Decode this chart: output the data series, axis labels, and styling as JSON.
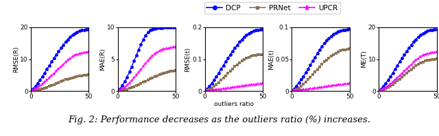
{
  "x": [
    0,
    2,
    4,
    6,
    8,
    10,
    12,
    14,
    16,
    18,
    20,
    22,
    24,
    26,
    28,
    30,
    32,
    34,
    36,
    38,
    40,
    42,
    44,
    46,
    48,
    50
  ],
  "subplots": [
    {
      "ylabel": "RMSE(R)",
      "ylim": [
        0,
        20
      ],
      "yticks": [
        0,
        10,
        20
      ],
      "dcp": [
        0.2,
        0.8,
        1.6,
        2.5,
        3.5,
        4.6,
        5.7,
        6.9,
        8.0,
        9.2,
        10.3,
        11.4,
        12.5,
        13.5,
        14.5,
        15.4,
        16.2,
        17.0,
        17.6,
        18.1,
        18.5,
        18.8,
        19.0,
        19.2,
        19.3,
        19.4
      ],
      "prnet": [
        0.05,
        0.1,
        0.2,
        0.3,
        0.5,
        0.7,
        0.9,
        1.2,
        1.5,
        1.8,
        2.1,
        2.4,
        2.7,
        3.0,
        3.3,
        3.6,
        3.8,
        4.0,
        4.2,
        4.4,
        4.6,
        4.7,
        4.8,
        4.9,
        5.0,
        5.1
      ],
      "upcr": [
        0.1,
        0.3,
        0.7,
        1.1,
        1.6,
        2.2,
        2.8,
        3.4,
        4.1,
        4.8,
        5.5,
        6.2,
        6.9,
        7.6,
        8.3,
        9.0,
        9.6,
        10.2,
        10.7,
        11.1,
        11.4,
        11.6,
        11.8,
        12.0,
        12.1,
        12.2
      ]
    },
    {
      "ylabel": "MAE(R)",
      "ylim": [
        0,
        10
      ],
      "yticks": [
        0,
        5,
        10
      ],
      "dcp": [
        0.1,
        0.4,
        0.9,
        1.5,
        2.2,
        3.0,
        3.8,
        4.7,
        5.6,
        6.5,
        7.3,
        8.1,
        8.7,
        9.2,
        9.5,
        9.7,
        9.8,
        9.85,
        9.9,
        9.92,
        9.94,
        9.95,
        9.96,
        9.97,
        9.98,
        9.99
      ],
      "prnet": [
        0.02,
        0.06,
        0.12,
        0.2,
        0.3,
        0.42,
        0.55,
        0.7,
        0.86,
        1.02,
        1.2,
        1.38,
        1.56,
        1.74,
        1.92,
        2.1,
        2.27,
        2.43,
        2.57,
        2.7,
        2.82,
        2.92,
        3.01,
        3.09,
        3.16,
        3.22
      ],
      "upcr": [
        0.05,
        0.15,
        0.35,
        0.6,
        0.9,
        1.25,
        1.65,
        2.05,
        2.5,
        2.95,
        3.4,
        3.85,
        4.3,
        4.75,
        5.15,
        5.5,
        5.8,
        6.05,
        6.25,
        6.4,
        6.52,
        6.62,
        6.7,
        6.77,
        6.83,
        6.88
      ]
    },
    {
      "ylabel": "RMSE(t)",
      "ylim": [
        0,
        0.2
      ],
      "yticks": [
        0,
        0.1,
        0.2
      ],
      "dcp": [
        0.002,
        0.008,
        0.016,
        0.025,
        0.035,
        0.046,
        0.057,
        0.069,
        0.08,
        0.092,
        0.103,
        0.114,
        0.125,
        0.135,
        0.145,
        0.154,
        0.162,
        0.17,
        0.176,
        0.181,
        0.185,
        0.188,
        0.19,
        0.192,
        0.193,
        0.194
      ],
      "prnet": [
        0.001,
        0.003,
        0.006,
        0.01,
        0.015,
        0.021,
        0.027,
        0.034,
        0.041,
        0.048,
        0.056,
        0.063,
        0.07,
        0.077,
        0.083,
        0.089,
        0.094,
        0.099,
        0.103,
        0.106,
        0.109,
        0.111,
        0.112,
        0.113,
        0.114,
        0.115
      ],
      "upcr": [
        0.0002,
        0.0006,
        0.0012,
        0.002,
        0.003,
        0.004,
        0.005,
        0.006,
        0.007,
        0.008,
        0.009,
        0.01,
        0.011,
        0.012,
        0.013,
        0.014,
        0.015,
        0.016,
        0.017,
        0.018,
        0.019,
        0.02,
        0.021,
        0.022,
        0.023,
        0.024
      ]
    },
    {
      "ylabel": "MAE(t)",
      "ylim": [
        0,
        0.1
      ],
      "yticks": [
        0,
        0.05,
        0.1
      ],
      "dcp": [
        0.001,
        0.004,
        0.008,
        0.013,
        0.018,
        0.023,
        0.029,
        0.035,
        0.041,
        0.047,
        0.053,
        0.059,
        0.065,
        0.07,
        0.075,
        0.079,
        0.083,
        0.086,
        0.089,
        0.091,
        0.093,
        0.094,
        0.095,
        0.096,
        0.097,
        0.098
      ],
      "prnet": [
        0.0005,
        0.0015,
        0.003,
        0.005,
        0.008,
        0.011,
        0.014,
        0.018,
        0.022,
        0.026,
        0.03,
        0.034,
        0.038,
        0.042,
        0.046,
        0.049,
        0.052,
        0.055,
        0.057,
        0.059,
        0.061,
        0.063,
        0.064,
        0.065,
        0.066,
        0.067
      ],
      "upcr": [
        0.0001,
        0.0003,
        0.0006,
        0.001,
        0.0014,
        0.002,
        0.0025,
        0.003,
        0.0035,
        0.004,
        0.0045,
        0.005,
        0.0055,
        0.006,
        0.0065,
        0.007,
        0.0075,
        0.008,
        0.0085,
        0.009,
        0.0095,
        0.01,
        0.0105,
        0.011,
        0.0115,
        0.012
      ]
    },
    {
      "ylabel": "ME(T)",
      "ylim": [
        0,
        20
      ],
      "yticks": [
        0,
        10,
        20
      ],
      "dcp": [
        0.2,
        0.8,
        1.6,
        2.5,
        3.5,
        4.6,
        5.7,
        6.9,
        8.0,
        9.2,
        10.3,
        11.4,
        12.5,
        13.5,
        14.5,
        15.4,
        16.2,
        17.0,
        17.6,
        18.1,
        18.5,
        18.8,
        19.0,
        19.2,
        19.3,
        19.4
      ],
      "prnet": [
        0.05,
        0.2,
        0.4,
        0.7,
        1.1,
        1.5,
        2.0,
        2.6,
        3.2,
        3.8,
        4.4,
        5.0,
        5.6,
        6.2,
        6.8,
        7.4,
        7.9,
        8.4,
        8.8,
        9.1,
        9.4,
        9.6,
        9.8,
        9.9,
        10.0,
        10.1
      ],
      "upcr": [
        0.1,
        0.3,
        0.7,
        1.1,
        1.6,
        2.2,
        2.8,
        3.4,
        4.1,
        4.8,
        5.5,
        6.2,
        6.9,
        7.6,
        8.3,
        9.0,
        9.6,
        10.2,
        10.7,
        11.1,
        11.4,
        11.6,
        11.8,
        12.0,
        12.1,
        12.2
      ]
    }
  ],
  "dcp_color": "#0000FF",
  "prnet_color": "#8B7355",
  "upcr_color": "#FF00FF",
  "xlabel": "outliers ratio",
  "caption": "Fig. 2: Performance decreases as the outliers ratio (%) increases.",
  "caption_fontsize": 9.5
}
